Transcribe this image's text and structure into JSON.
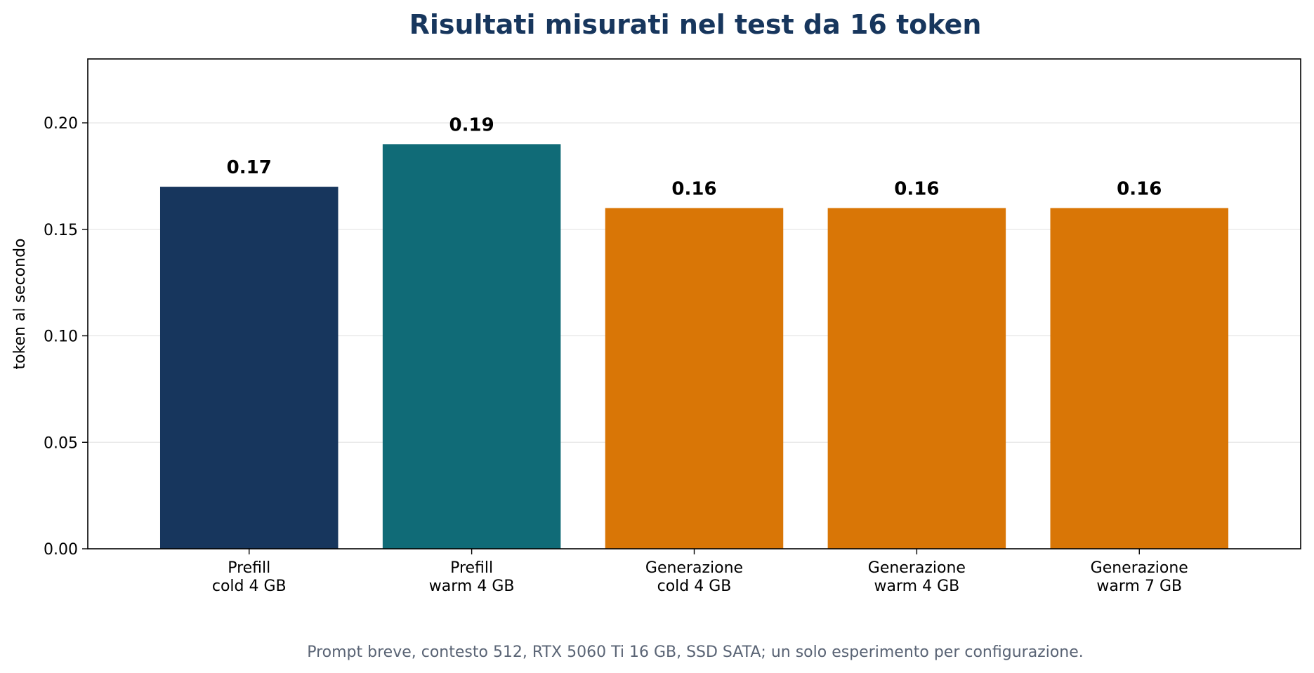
{
  "chart_data": {
    "type": "bar",
    "title": "Risultati misurati nel test da 16 token",
    "ylabel": "token al secondo",
    "xlabel": "",
    "ylim": [
      0,
      0.23
    ],
    "yticks": [
      "0.00",
      "0.05",
      "0.10",
      "0.15",
      "0.20"
    ],
    "grid": "horizontal",
    "categories": [
      [
        "Prefill",
        "cold 4 GB"
      ],
      [
        "Prefill",
        "warm 4 GB"
      ],
      [
        "Generazione",
        "cold 4 GB"
      ],
      [
        "Generazione",
        "warm 4 GB"
      ],
      [
        "Generazione",
        "warm 7 GB"
      ]
    ],
    "values": [
      0.17,
      0.19,
      0.16,
      0.16,
      0.16
    ],
    "value_labels": [
      "0.17",
      "0.19",
      "0.16",
      "0.16",
      "0.16"
    ],
    "colors": [
      "#17365d",
      "#106b77",
      "#d97606",
      "#d97606",
      "#d97606"
    ],
    "footnote": "Prompt breve, contesto 512, RTX 5060 Ti 16 GB, SSD SATA; un solo esperimento per configurazione."
  }
}
